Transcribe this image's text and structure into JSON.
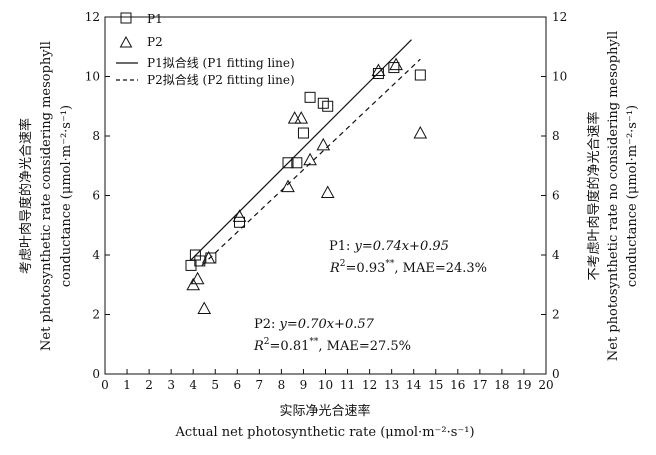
{
  "chart_data": {
    "type": "scatter",
    "xlabel_cn": "实际净光合速率",
    "xlabel_en": "Actual net photosynthetic rate (μmol·m⁻²·s⁻¹)",
    "ylabel_left_cn": "考虑叶肉导度的净光合速率",
    "ylabel_left_en1": "Net photosynthetic rate considering mesophyll",
    "ylabel_left_en2": "conductance (μmol·m⁻²·s⁻¹)",
    "ylabel_right_cn": "不考虑叶肉导度的净光合速率",
    "ylabel_right_en1": "Net photosynthetic rate no considering mesophyll",
    "ylabel_right_en2": "conductance (μmol·m⁻²·s⁻¹)",
    "xlim": [
      0,
      20
    ],
    "ylim": [
      0,
      12
    ],
    "xticks": [
      "0",
      "1",
      "2",
      "3",
      "4",
      "5",
      "6",
      "7",
      "8",
      "9",
      "10",
      "11",
      "12",
      "13",
      "14",
      "15",
      "16",
      "17",
      "18",
      "19",
      "20"
    ],
    "yticks": [
      "0",
      "2",
      "4",
      "6",
      "8",
      "10",
      "12"
    ],
    "legend": {
      "p1": "P1",
      "p2": "P2",
      "p1_line": "P1拟合线 (P1 fitting line)",
      "p2_line": "P2拟合线 (P2 fitting line)",
      "position": "top-left"
    },
    "series": [
      {
        "name": "P1",
        "marker": "square",
        "points": [
          [
            3.9,
            3.65
          ],
          [
            4.1,
            4.0
          ],
          [
            4.3,
            3.8
          ],
          [
            4.8,
            3.9
          ],
          [
            6.1,
            5.1
          ],
          [
            8.3,
            7.1
          ],
          [
            8.7,
            7.1
          ],
          [
            9.0,
            8.1
          ],
          [
            9.3,
            9.3
          ],
          [
            9.9,
            9.1
          ],
          [
            10.1,
            9.0
          ],
          [
            12.4,
            10.1
          ],
          [
            13.1,
            10.3
          ],
          [
            14.3,
            10.05
          ]
        ],
        "fit": {
          "slope": 0.74,
          "intercept": 0.95,
          "x_range": [
            3.9,
            13.9
          ]
        }
      },
      {
        "name": "P2",
        "marker": "triangle",
        "points": [
          [
            4.0,
            3.0
          ],
          [
            4.2,
            3.2
          ],
          [
            4.5,
            2.2
          ],
          [
            4.7,
            3.9
          ],
          [
            6.1,
            5.3
          ],
          [
            8.3,
            6.3
          ],
          [
            8.6,
            8.6
          ],
          [
            8.9,
            8.6
          ],
          [
            9.3,
            7.2
          ],
          [
            9.9,
            7.7
          ],
          [
            10.1,
            6.1
          ],
          [
            12.4,
            10.2
          ],
          [
            13.2,
            10.4
          ],
          [
            14.3,
            8.1
          ]
        ],
        "fit": {
          "slope": 0.7,
          "intercept": 0.57,
          "x_range": [
            4.4,
            14.3
          ]
        }
      }
    ],
    "annotations": {
      "p1_eq_prefix": "P1: ",
      "p1_eq": "y=0.74x+0.95",
      "p1_r2_prefix": "R",
      "p1_r2_value": "=0.93",
      "p1_r2_sig": "**",
      "p1_mae": ", MAE=24.3%",
      "p2_eq_prefix": "P2: ",
      "p2_eq": "y=0.70x+0.57",
      "p2_r2_prefix": "R",
      "p2_r2_value": "=0.81",
      "p2_r2_sig": "**",
      "p2_mae": ", MAE=27.5%"
    }
  }
}
